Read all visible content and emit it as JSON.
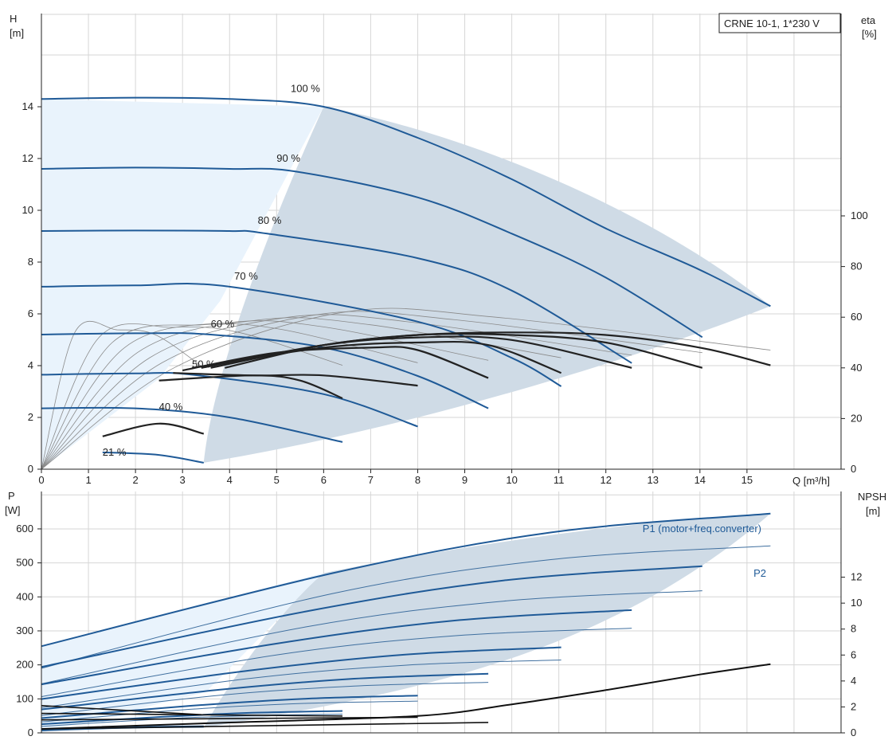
{
  "chart_data": [
    {
      "type": "line",
      "title": "CRNE 10-1, 1*230 V",
      "x_axis": {
        "label": "Q [m³/h]",
        "range": [
          0,
          15.5
        ],
        "ticks": [
          0,
          1,
          2,
          3,
          4,
          5,
          6,
          7,
          8,
          9,
          10,
          11,
          12,
          13,
          14,
          15
        ]
      },
      "y_left": {
        "label_top": "H",
        "label_unit": "[m]",
        "range": [
          0,
          14
        ],
        "ticks": [
          0,
          2,
          4,
          6,
          8,
          10,
          12,
          14
        ]
      },
      "y_right": {
        "label_top": "eta",
        "label_unit": "[%]",
        "range": [
          0,
          100
        ],
        "ticks": [
          0,
          20,
          40,
          60,
          80,
          100
        ]
      },
      "grid": true,
      "head_curves": [
        {
          "name": "100 %",
          "max_q": 15.5,
          "points": [
            [
              0,
              14.3
            ],
            [
              2,
              14.35
            ],
            [
              4,
              14.3
            ],
            [
              6,
              14.0
            ],
            [
              8,
              12.8
            ],
            [
              10,
              11.2
            ],
            [
              12,
              9.3
            ],
            [
              14,
              7.7
            ],
            [
              15.5,
              6.3
            ]
          ]
        },
        {
          "name": "90 %",
          "max_q": 14.05,
          "points": [
            [
              0,
              11.6
            ],
            [
              2,
              11.65
            ],
            [
              4,
              11.6
            ],
            [
              5.4,
              11.5
            ],
            [
              8,
              10.5
            ],
            [
              10,
              9.1
            ],
            [
              12,
              7.4
            ],
            [
              14.05,
              5.1
            ]
          ]
        },
        {
          "name": "80 %",
          "max_q": 12.55,
          "points": [
            [
              0,
              9.2
            ],
            [
              2,
              9.22
            ],
            [
              4,
              9.2
            ],
            [
              4.8,
              9.1
            ],
            [
              8,
              8.15
            ],
            [
              10,
              6.9
            ],
            [
              12.55,
              4.1
            ]
          ]
        },
        {
          "name": "70 %",
          "max_q": 11.05,
          "points": [
            [
              0,
              7.05
            ],
            [
              2,
              7.1
            ],
            [
              4,
              7.05
            ],
            [
              8,
              5.7
            ],
            [
              10,
              4.3
            ],
            [
              11.05,
              3.2
            ]
          ]
        },
        {
          "name": "60 %",
          "max_q": 9.5,
          "points": [
            [
              0,
              5.2
            ],
            [
              2,
              5.25
            ],
            [
              3.6,
              5.2
            ],
            [
              6,
              4.7
            ],
            [
              8,
              3.6
            ],
            [
              9.5,
              2.35
            ]
          ]
        },
        {
          "name": "50 %",
          "max_q": 8.0,
          "points": [
            [
              0,
              3.65
            ],
            [
              2,
              3.7
            ],
            [
              3.2,
              3.65
            ],
            [
              6,
              2.9
            ],
            [
              8,
              1.65
            ]
          ]
        },
        {
          "name": "40 %",
          "max_q": 6.4,
          "points": [
            [
              0,
              2.35
            ],
            [
              2,
              2.35
            ],
            [
              4,
              2.0
            ],
            [
              6.4,
              1.05
            ]
          ]
        },
        {
          "name": "21 %",
          "max_q": 3.45,
          "points": [
            [
              1.3,
              0.65
            ],
            [
              2.5,
              0.55
            ],
            [
              3.45,
              0.25
            ]
          ]
        }
      ],
      "eta_curves": [
        {
          "name": "100 %",
          "points": [
            [
              3.9,
              40
            ],
            [
              6,
              49
            ],
            [
              8,
              53
            ],
            [
              10,
              54
            ],
            [
              12,
              53
            ],
            [
              14,
              48
            ],
            [
              15.5,
              41
            ]
          ]
        },
        {
          "name": "90 %",
          "points": [
            [
              3.6,
              40
            ],
            [
              6,
              49
            ],
            [
              8,
              53
            ],
            [
              10,
              53
            ],
            [
              12,
              50
            ],
            [
              14.05,
              40
            ]
          ]
        },
        {
          "name": "80 %",
          "points": [
            [
              3.4,
              40
            ],
            [
              6,
              49
            ],
            [
              8,
              52
            ],
            [
              10,
              51
            ],
            [
              12.55,
              40
            ]
          ]
        },
        {
          "name": "70 %",
          "points": [
            [
              3.2,
              40
            ],
            [
              6,
              48
            ],
            [
              8,
              50
            ],
            [
              9.5,
              49
            ],
            [
              11.05,
              38
            ]
          ]
        },
        {
          "name": "60 %",
          "points": [
            [
              3.0,
              39
            ],
            [
              5,
              46
            ],
            [
              7,
              48
            ],
            [
              8,
              47
            ],
            [
              9.5,
              36
            ]
          ]
        },
        {
          "name": "50 %",
          "points": [
            [
              2.8,
              38
            ],
            [
              4.5,
              37
            ],
            [
              6,
              37
            ],
            [
              8,
              33
            ]
          ]
        },
        {
          "name": "40 %",
          "points": [
            [
              2.5,
              35
            ],
            [
              4.5,
              37
            ],
            [
              5.5,
              35
            ],
            [
              6.4,
              28
            ]
          ]
        },
        {
          "name": "21 %",
          "points": [
            [
              1.3,
              13
            ],
            [
              2.5,
              18
            ],
            [
              3.45,
              14
            ]
          ]
        }
      ],
      "labels": [
        "100 %",
        "90 %",
        "80 %",
        "70 %",
        "60 %",
        "50 %",
        "40 %",
        "21 %"
      ]
    },
    {
      "type": "line",
      "x_axis": {
        "range": [
          0,
          15.5
        ]
      },
      "y_left": {
        "label_top": "P",
        "label_unit": "[W]",
        "range": [
          0,
          700
        ],
        "ticks": [
          0,
          100,
          200,
          300,
          400,
          500,
          600
        ]
      },
      "y_right": {
        "label_top": "NPSH",
        "label_unit": "[m]",
        "range": [
          0,
          14
        ],
        "ticks": [
          0,
          2,
          4,
          6,
          8,
          10,
          12
        ]
      },
      "grid": true,
      "series": [
        {
          "name": "P1 (motor+freq.converter)",
          "points": [
            [
              0,
              255
            ],
            [
              6,
              470
            ],
            [
              10,
              590
            ],
            [
              14,
              640
            ],
            [
              15.5,
              645
            ]
          ]
        },
        {
          "name": "P2",
          "points": [
            [
              0,
              190
            ],
            [
              6,
              410
            ],
            [
              10,
              510
            ],
            [
              14,
              545
            ],
            [
              15.5,
              550
            ]
          ]
        },
        {
          "name": "NPSH",
          "points": [
            [
              0,
              0.3
            ],
            [
              4,
              0.8
            ],
            [
              8,
              1.3
            ],
            [
              10,
              2.2
            ],
            [
              12,
              3.3
            ],
            [
              14,
              4.5
            ],
            [
              15.5,
              5.3
            ]
          ]
        }
      ]
    }
  ]
}
